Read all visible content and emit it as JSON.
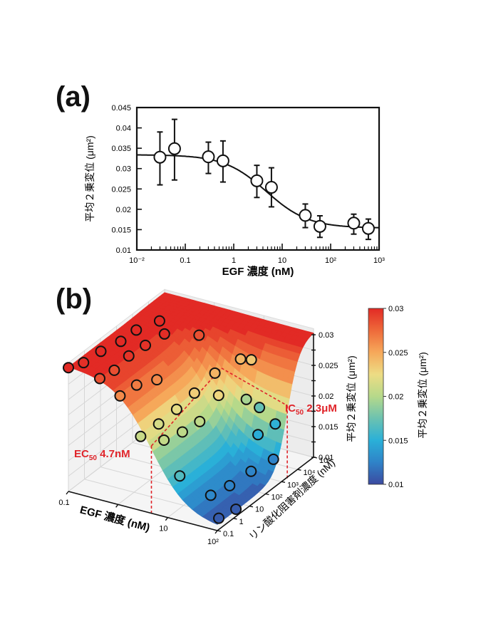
{
  "panels": {
    "a_label": "(a)",
    "b_label": "(b)"
  },
  "chart_data": [
    {
      "id": "a",
      "type": "scatter",
      "title": "",
      "xlabel": "EGF 濃度 (nM)",
      "ylabel": "平均２乗変位 (μm²)",
      "xscale": "log",
      "xlim": [
        0.01,
        1000
      ],
      "ylim": [
        0.01,
        0.045
      ],
      "xticks": [
        {
          "value": 0.01,
          "label": "10⁻²"
        },
        {
          "value": 0.1,
          "label": "0.1"
        },
        {
          "value": 1,
          "label": "1"
        },
        {
          "value": 10,
          "label": "10"
        },
        {
          "value": 100,
          "label": "10²"
        },
        {
          "value": 1000,
          "label": "10³"
        }
      ],
      "yticks": [
        {
          "value": 0.01,
          "label": "0.01"
        },
        {
          "value": 0.015,
          "label": "0.015"
        },
        {
          "value": 0.02,
          "label": "0.02"
        },
        {
          "value": 0.025,
          "label": "0.025"
        },
        {
          "value": 0.03,
          "label": "0.03"
        },
        {
          "value": 0.035,
          "label": "0.035"
        },
        {
          "value": 0.04,
          "label": "0.04"
        },
        {
          "value": 0.045,
          "label": "0.045"
        }
      ],
      "points": [
        {
          "x": 0.03,
          "y": 0.0328,
          "err_low": 0.026,
          "err_high": 0.039
        },
        {
          "x": 0.06,
          "y": 0.0349,
          "err_low": 0.0272,
          "err_high": 0.0421
        },
        {
          "x": 0.3,
          "y": 0.0329,
          "err_low": 0.0288,
          "err_high": 0.0365
        },
        {
          "x": 0.6,
          "y": 0.0319,
          "err_low": 0.0267,
          "err_high": 0.0368
        },
        {
          "x": 3,
          "y": 0.027,
          "err_low": 0.0229,
          "err_high": 0.0308
        },
        {
          "x": 6,
          "y": 0.0254,
          "err_low": 0.0206,
          "err_high": 0.0302
        },
        {
          "x": 30,
          "y": 0.0185,
          "err_low": 0.0155,
          "err_high": 0.0213
        },
        {
          "x": 60,
          "y": 0.0158,
          "err_low": 0.0131,
          "err_high": 0.0184
        },
        {
          "x": 300,
          "y": 0.0166,
          "err_low": 0.0139,
          "err_high": 0.0188
        },
        {
          "x": 600,
          "y": 0.0153,
          "err_low": 0.0126,
          "err_high": 0.0176
        }
      ],
      "fit": {
        "type": "sigmoid",
        "top": 0.0334,
        "bottom": 0.0154,
        "ec50": 4.7,
        "hill": 1.0
      }
    },
    {
      "id": "b",
      "type": "surface3d",
      "xlabel": "EGF 濃度 (nM)",
      "ylabel": "リン酸化阻害剤濃度 (nM)",
      "zlabel": "平均２乗変位 (μm²)",
      "xscale": "log",
      "yscale": "log",
      "xlim": [
        0.1,
        100
      ],
      "ylim": [
        0.1,
        100000
      ],
      "zlim": [
        0.01,
        0.03
      ],
      "xticks": [
        {
          "value": 0.1,
          "label": "0.1"
        },
        {
          "value": 1,
          "label": "1"
        },
        {
          "value": 10,
          "label": "10"
        },
        {
          "value": 100,
          "label": "10²"
        }
      ],
      "yticks": [
        {
          "value": 0.1,
          "label": "0.1"
        },
        {
          "value": 1,
          "label": "1"
        },
        {
          "value": 10,
          "label": "10"
        },
        {
          "value": 100,
          "label": "10²"
        },
        {
          "value": 1000,
          "label": "10³"
        },
        {
          "value": 10000,
          "label": "10⁴"
        },
        {
          "value": 100000,
          "label": "10⁵"
        }
      ],
      "zticks": [
        {
          "value": 0.01,
          "label": "0.01"
        },
        {
          "value": 0.015,
          "label": "0.015"
        },
        {
          "value": 0.02,
          "label": "0.02"
        },
        {
          "value": 0.025,
          "label": "0.025"
        },
        {
          "value": 0.03,
          "label": "0.03"
        }
      ],
      "surface": {
        "top": 0.0305,
        "bottom": 0.0105,
        "ec50_nM": 4.7,
        "ic50_nM": 2300
      },
      "annotations": [
        {
          "name": "ec50",
          "prefix": "EC",
          "sub": "50",
          "value": "4.7nM",
          "x": 4.7
        },
        {
          "name": "ic50",
          "prefix": "IC",
          "sub": "50",
          "value": "2.3μM",
          "y": 2300
        }
      ],
      "annotation_color": "#e0242a",
      "points": [
        {
          "egf": 0.1,
          "inh": 0.1,
          "msd": 0.0302
        },
        {
          "egf": 0.12,
          "inh": 0.5,
          "msd": 0.0298
        },
        {
          "egf": 0.15,
          "inh": 3,
          "msd": 0.0303
        },
        {
          "egf": 0.18,
          "inh": 30,
          "msd": 0.0301
        },
        {
          "egf": 0.2,
          "inh": 200,
          "msd": 0.0304
        },
        {
          "egf": 0.28,
          "inh": 2000,
          "msd": 0.0302
        },
        {
          "egf": 0.3,
          "inh": 0.3,
          "msd": 0.0285
        },
        {
          "egf": 0.35,
          "inh": 1.5,
          "msd": 0.0286
        },
        {
          "egf": 0.4,
          "inh": 8,
          "msd": 0.0296
        },
        {
          "egf": 0.45,
          "inh": 60,
          "msd": 0.0297
        },
        {
          "egf": 0.55,
          "inh": 500,
          "msd": 0.0299
        },
        {
          "egf": 0.7,
          "inh": 0.4,
          "msd": 0.0262
        },
        {
          "egf": 0.9,
          "inh": 2,
          "msd": 0.0268
        },
        {
          "egf": 1.2,
          "inh": 15,
          "msd": 0.0262
        },
        {
          "egf": 1.3,
          "inh": 5000,
          "msd": 0.0285
        },
        {
          "egf": 2,
          "inh": 0.3,
          "msd": 0.0208
        },
        {
          "egf": 2.5,
          "inh": 2,
          "msd": 0.0214
        },
        {
          "egf": 3,
          "inh": 15,
          "msd": 0.0222
        },
        {
          "egf": 3.5,
          "inh": 120,
          "msd": 0.0232
        },
        {
          "egf": 4,
          "inh": 1500,
          "msd": 0.0244
        },
        {
          "egf": 5,
          "inh": 30000,
          "msd": 0.0243
        },
        {
          "egf": 6,
          "inh": 80000,
          "msd": 0.0235
        },
        {
          "egf": 5,
          "inh": 0.5,
          "msd": 0.0206
        },
        {
          "egf": 6,
          "inh": 4,
          "msd": 0.0203
        },
        {
          "egf": 7,
          "inh": 30,
          "msd": 0.0204
        },
        {
          "egf": 8,
          "inh": 300,
          "msd": 0.0228
        },
        {
          "egf": 10,
          "inh": 8000,
          "msd": 0.0195
        },
        {
          "egf": 12,
          "inh": 30000,
          "msd": 0.0172
        },
        {
          "egf": 14,
          "inh": 0.2,
          "msd": 0.0165
        },
        {
          "egf": 20,
          "inh": 5000,
          "msd": 0.0148
        },
        {
          "egf": 25,
          "inh": 30000,
          "msd": 0.0152
        },
        {
          "egf": 35,
          "inh": 1,
          "msd": 0.0128
        },
        {
          "egf": 40,
          "inh": 10,
          "msd": 0.0125
        },
        {
          "egf": 45,
          "inh": 150,
          "msd": 0.0126
        },
        {
          "egf": 55,
          "inh": 2000,
          "msd": 0.0125
        },
        {
          "egf": 75,
          "inh": 0.3,
          "msd": 0.0108
        },
        {
          "egf": 90,
          "inh": 2,
          "msd": 0.0108
        }
      ]
    },
    {
      "id": "colorbar",
      "type": "colorbar",
      "label": "平均２乗変位 (μm²)",
      "range": [
        0.01,
        0.03
      ],
      "ticks": [
        {
          "value": 0.01,
          "label": "0.01"
        },
        {
          "value": 0.015,
          "label": "0.015"
        },
        {
          "value": 0.02,
          "label": "0.02"
        },
        {
          "value": 0.025,
          "label": "0.025"
        },
        {
          "value": 0.03,
          "label": "0.03"
        }
      ],
      "colormap": [
        "#3b4aa0",
        "#2f83c8",
        "#2ab0d8",
        "#6cc2b0",
        "#b6d98a",
        "#eddc84",
        "#f6a85a",
        "#ee6a3a",
        "#e22a25"
      ]
    }
  ]
}
